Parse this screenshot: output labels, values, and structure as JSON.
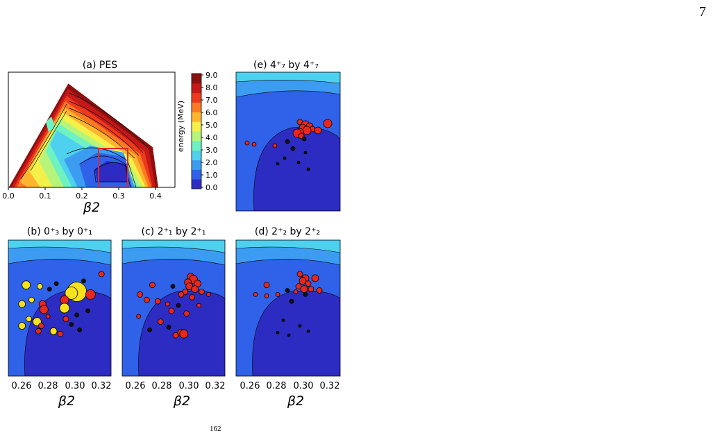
{
  "page_number": "7",
  "footer_fragment": "162",
  "colorbar": {
    "label": "energy (MeV)",
    "ticks": [
      "9.0",
      "8.0",
      "7.0",
      "6.0",
      "5.0",
      "4.0",
      "3.0",
      "2.0",
      "1.0",
      "0.0"
    ],
    "colors": [
      "#2c2cc2",
      "#2f62e8",
      "#3c9cf2",
      "#4ed1ee",
      "#6ef2c2",
      "#b6f57a",
      "#f4f04a",
      "#ffb62e",
      "#fb7a22",
      "#ee3a1c",
      "#c51818",
      "#8e0f10"
    ]
  },
  "panels": {
    "a": {
      "title": "(a) PES",
      "xticks": [
        "0.0",
        "0.1",
        "0.2",
        "0.3",
        "0.4"
      ],
      "xlabel": "β2"
    },
    "b": {
      "title": "(b) 0⁺₃ by 0⁺₁"
    },
    "c": {
      "title": "(c) 2⁺₁ by 2⁺₁"
    },
    "d": {
      "title": "(d) 2⁺₂ by 2⁺₂"
    },
    "e": {
      "title": "(e) 4⁺₇ by 4⁺₇"
    }
  },
  "bottom_axis": {
    "xticks": [
      "0.26",
      "0.28",
      "0.30",
      "0.32"
    ],
    "xlabel": "β2"
  },
  "chart_data": [
    {
      "type": "heatmap",
      "title": "(a) PES",
      "xlabel": "β2",
      "xlim": [
        0.0,
        0.45
      ],
      "zlim": [
        0.0,
        9.0
      ],
      "note": "potential energy surface, triangular β2–γ sector; red box marks zoom region",
      "zoom_box_beta2": [
        0.25,
        0.33
      ]
    },
    {
      "type": "scatter",
      "title": "(b) 0⁺₃ by 0⁺₁",
      "xlim": [
        0.25,
        0.325
      ],
      "points": [
        [
          0.3,
          0.62,
          14,
          "y"
        ],
        [
          0.296,
          0.61,
          9,
          "y"
        ],
        [
          0.291,
          0.56,
          6,
          "r"
        ],
        [
          0.31,
          0.6,
          7,
          "r"
        ],
        [
          0.263,
          0.67,
          6,
          "y"
        ],
        [
          0.273,
          0.66,
          4,
          "y"
        ],
        [
          0.285,
          0.68,
          3,
          "k"
        ],
        [
          0.291,
          0.5,
          7,
          "y"
        ],
        [
          0.267,
          0.56,
          4,
          "y"
        ],
        [
          0.26,
          0.53,
          5,
          "y"
        ],
        [
          0.275,
          0.53,
          5,
          "r"
        ],
        [
          0.276,
          0.49,
          6,
          "r"
        ],
        [
          0.265,
          0.42,
          4,
          "y"
        ],
        [
          0.271,
          0.4,
          6,
          "y"
        ],
        [
          0.26,
          0.37,
          5,
          "y"
        ],
        [
          0.274,
          0.37,
          4,
          "r"
        ],
        [
          0.283,
          0.33,
          5,
          "y"
        ],
        [
          0.288,
          0.31,
          4,
          "r"
        ],
        [
          0.292,
          0.42,
          4,
          "r"
        ],
        [
          0.3,
          0.45,
          3,
          "k"
        ],
        [
          0.318,
          0.75,
          4,
          "r"
        ],
        [
          0.305,
          0.7,
          3,
          "k"
        ],
        [
          0.28,
          0.64,
          3,
          "k"
        ],
        [
          0.296,
          0.38,
          3,
          "k"
        ],
        [
          0.302,
          0.34,
          3,
          "k"
        ],
        [
          0.308,
          0.48,
          3,
          "k"
        ],
        [
          0.279,
          0.44,
          3,
          "r"
        ],
        [
          0.272,
          0.33,
          4,
          "r"
        ]
      ]
    },
    {
      "type": "scatter",
      "title": "(c) 2⁺₁ by 2⁺₁",
      "xlim": [
        0.25,
        0.325
      ],
      "points": [
        [
          0.3,
          0.73,
          5,
          "r"
        ],
        [
          0.302,
          0.71,
          6,
          "r"
        ],
        [
          0.298,
          0.69,
          5,
          "r"
        ],
        [
          0.305,
          0.68,
          5,
          "r"
        ],
        [
          0.299,
          0.66,
          5,
          "r"
        ],
        [
          0.303,
          0.64,
          5,
          "r"
        ],
        [
          0.296,
          0.62,
          4,
          "r"
        ],
        [
          0.308,
          0.62,
          4,
          "r"
        ],
        [
          0.293,
          0.6,
          4,
          "r"
        ],
        [
          0.301,
          0.58,
          4,
          "r"
        ],
        [
          0.272,
          0.67,
          4,
          "r"
        ],
        [
          0.263,
          0.6,
          4,
          "r"
        ],
        [
          0.268,
          0.56,
          4,
          "r"
        ],
        [
          0.276,
          0.55,
          4,
          "r"
        ],
        [
          0.283,
          0.53,
          3,
          "r"
        ],
        [
          0.291,
          0.52,
          3,
          "k"
        ],
        [
          0.286,
          0.48,
          4,
          "r"
        ],
        [
          0.297,
          0.46,
          4,
          "r"
        ],
        [
          0.262,
          0.44,
          3,
          "r"
        ],
        [
          0.278,
          0.4,
          4,
          "r"
        ],
        [
          0.284,
          0.36,
          3,
          "k"
        ],
        [
          0.293,
          0.32,
          5,
          "r"
        ],
        [
          0.295,
          0.31,
          6,
          "r"
        ],
        [
          0.289,
          0.3,
          4,
          "r"
        ],
        [
          0.27,
          0.34,
          3,
          "k"
        ],
        [
          0.306,
          0.52,
          3,
          "r"
        ],
        [
          0.313,
          0.6,
          3,
          "r"
        ],
        [
          0.287,
          0.66,
          3,
          "k"
        ]
      ]
    },
    {
      "type": "scatter",
      "title": "(d) 2⁺₂ by 2⁺₂",
      "xlim": [
        0.25,
        0.325
      ],
      "points": [
        [
          0.296,
          0.75,
          4,
          "r"
        ],
        [
          0.3,
          0.72,
          5,
          "r"
        ],
        [
          0.298,
          0.7,
          5,
          "r"
        ],
        [
          0.307,
          0.72,
          5,
          "r"
        ],
        [
          0.302,
          0.68,
          4,
          "r"
        ],
        [
          0.295,
          0.66,
          4,
          "r"
        ],
        [
          0.299,
          0.64,
          5,
          "r"
        ],
        [
          0.304,
          0.64,
          4,
          "r"
        ],
        [
          0.31,
          0.63,
          4,
          "r"
        ],
        [
          0.293,
          0.62,
          3,
          "r"
        ],
        [
          0.3,
          0.6,
          3,
          "k"
        ],
        [
          0.272,
          0.67,
          4,
          "r"
        ],
        [
          0.264,
          0.6,
          3,
          "r"
        ],
        [
          0.272,
          0.59,
          3,
          "r"
        ],
        [
          0.28,
          0.6,
          3,
          "r"
        ],
        [
          0.287,
          0.63,
          3,
          "k"
        ],
        [
          0.29,
          0.55,
          3,
          "k"
        ],
        [
          0.284,
          0.41,
          2,
          "k"
        ],
        [
          0.296,
          0.37,
          2,
          "k"
        ],
        [
          0.302,
          0.33,
          2,
          "k"
        ],
        [
          0.288,
          0.3,
          2,
          "k"
        ],
        [
          0.28,
          0.32,
          2,
          "k"
        ]
      ]
    },
    {
      "type": "scatter",
      "title": "(e) 4⁺₇ by 4⁺₇",
      "xlim": [
        0.25,
        0.325
      ],
      "points": [
        [
          0.296,
          0.64,
          4,
          "r"
        ],
        [
          0.3,
          0.62,
          6,
          "r"
        ],
        [
          0.303,
          0.61,
          5,
          "r"
        ],
        [
          0.298,
          0.6,
          5,
          "r"
        ],
        [
          0.305,
          0.59,
          4,
          "r"
        ],
        [
          0.301,
          0.58,
          6,
          "r"
        ],
        [
          0.296,
          0.57,
          5,
          "r"
        ],
        [
          0.294,
          0.56,
          6,
          "r"
        ],
        [
          0.309,
          0.58,
          5,
          "r"
        ],
        [
          0.316,
          0.63,
          6,
          "r"
        ],
        [
          0.297,
          0.54,
          4,
          "r"
        ],
        [
          0.299,
          0.52,
          3,
          "k"
        ],
        [
          0.263,
          0.48,
          3,
          "r"
        ],
        [
          0.258,
          0.49,
          3,
          "r"
        ],
        [
          0.278,
          0.47,
          3,
          "r"
        ],
        [
          0.287,
          0.5,
          3,
          "k"
        ],
        [
          0.291,
          0.45,
          3,
          "k"
        ],
        [
          0.3,
          0.42,
          2,
          "k"
        ],
        [
          0.285,
          0.38,
          2,
          "k"
        ],
        [
          0.295,
          0.35,
          2,
          "k"
        ],
        [
          0.28,
          0.34,
          2,
          "k"
        ],
        [
          0.302,
          0.3,
          2,
          "k"
        ]
      ]
    }
  ]
}
